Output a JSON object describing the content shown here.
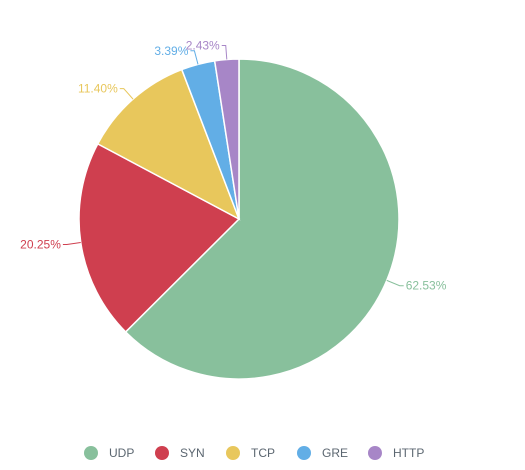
{
  "chart_data": {
    "type": "pie",
    "title": "",
    "legend_position": "bottom",
    "slices": [
      {
        "name": "UDP",
        "value": 62.53,
        "label": "62.53%",
        "color": "#88c09c"
      },
      {
        "name": "SYN",
        "value": 20.25,
        "label": "20.25%",
        "color": "#cf3f4f"
      },
      {
        "name": "TCP",
        "value": 11.4,
        "label": "11.40%",
        "color": "#e8c75c"
      },
      {
        "name": "GRE",
        "value": 3.39,
        "label": "3.39%",
        "color": "#62aee6"
      },
      {
        "name": "HTTP",
        "value": 2.43,
        "label": "2.43%",
        "color": "#a786c7"
      }
    ]
  }
}
